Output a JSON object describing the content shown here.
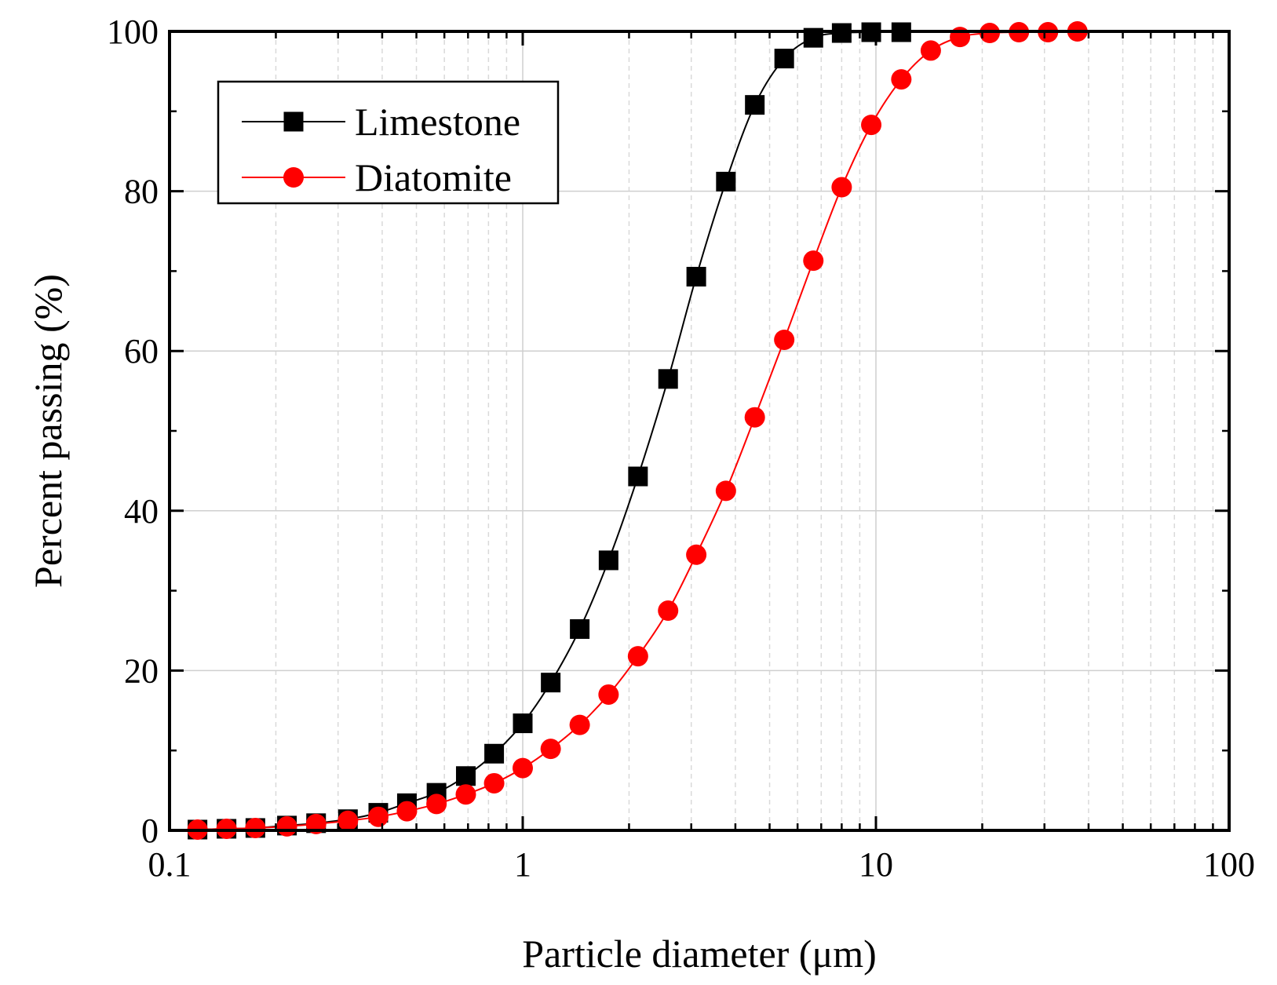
{
  "chart_data": {
    "type": "line",
    "title": "",
    "xlabel": "Particle diameter (μm)",
    "ylabel": "Percent passing (%)",
    "xscale": "log",
    "xlim": [
      0.1,
      100
    ],
    "ylim": [
      0,
      100
    ],
    "xticks": [
      "0.1",
      "1",
      "10",
      "100"
    ],
    "yticks": [
      "0",
      "20",
      "40",
      "60",
      "80",
      "100"
    ],
    "grid": true,
    "legend_position": "top-left",
    "series": [
      {
        "name": "Limestone",
        "color": "#000000",
        "marker": "square",
        "x": [
          0.12,
          0.145,
          0.175,
          0.215,
          0.26,
          0.32,
          0.39,
          0.47,
          0.57,
          0.69,
          0.83,
          1.0,
          1.2,
          1.45,
          1.75,
          2.12,
          2.58,
          3.1,
          3.76,
          4.54,
          5.5,
          6.65,
          8.0,
          9.7,
          11.8
        ],
        "values": [
          0.1,
          0.2,
          0.3,
          0.6,
          0.9,
          1.4,
          2.2,
          3.4,
          4.7,
          6.8,
          9.6,
          13.4,
          18.5,
          25.2,
          33.8,
          44.3,
          56.5,
          69.3,
          81.2,
          90.8,
          96.6,
          99.2,
          99.8,
          99.9,
          99.9
        ]
      },
      {
        "name": "Diatomite",
        "color": "#ff0000",
        "marker": "circle",
        "x": [
          0.12,
          0.145,
          0.175,
          0.215,
          0.26,
          0.32,
          0.39,
          0.47,
          0.57,
          0.69,
          0.83,
          1.0,
          1.2,
          1.45,
          1.75,
          2.12,
          2.58,
          3.1,
          3.76,
          4.54,
          5.5,
          6.65,
          8.0,
          9.7,
          11.8,
          14.3,
          17.3,
          21.0,
          25.4,
          30.7,
          37.2
        ],
        "values": [
          0.1,
          0.2,
          0.3,
          0.5,
          0.8,
          1.2,
          1.7,
          2.4,
          3.3,
          4.5,
          5.9,
          7.8,
          10.2,
          13.2,
          17.0,
          21.8,
          27.5,
          34.5,
          42.5,
          51.7,
          61.4,
          71.3,
          80.5,
          88.3,
          94.0,
          97.6,
          99.3,
          99.8,
          99.9,
          99.9,
          100.0
        ]
      }
    ]
  }
}
